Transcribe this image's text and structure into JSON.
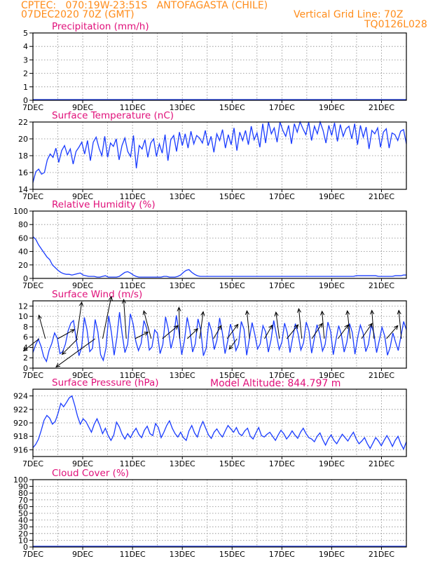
{
  "header": {
    "line1": "CPTEC:   070:19W-23:51S   ANTOFAGASTA (CHILE)",
    "line2": "07DEC2020 70Z (GMT)",
    "grid_note": "Vertical Grid Line: 70Z",
    "code": "TQ0126L028",
    "model_altitude": "Model Altitude: 844.797 m"
  },
  "colors": {
    "header": "#ff8c1a",
    "title": "#e0107a",
    "line": "#1a3cff",
    "arrow": "#000000",
    "grid": "#888888"
  },
  "chart_data": [
    {
      "type": "line",
      "title": "Precipitation (mm/h)",
      "ylim": [
        0,
        5
      ],
      "yticks": [
        "0",
        "1",
        "2",
        "3",
        "4",
        "5"
      ],
      "xlim_days": [
        7,
        22
      ],
      "xticks": [
        "7DEC",
        "9DEC",
        "11DEC",
        "13DEC",
        "15DEC",
        "17DEC",
        "19DEC",
        "21DEC"
      ],
      "grid": true,
      "series": [
        {
          "values": []
        }
      ]
    },
    {
      "type": "line",
      "title": "Surface Temperature (nC)",
      "ylim": [
        14,
        22
      ],
      "yticks": [
        "14",
        "16",
        "18",
        "20",
        "22"
      ],
      "xticks": [
        "7DEC",
        "9DEC",
        "11DEC",
        "13DEC",
        "15DEC",
        "17DEC",
        "19DEC",
        "21DEC"
      ],
      "grid": true,
      "series": [
        {
          "values": [
            14.8,
            16.1,
            16.4,
            15.8,
            16.0,
            17.5,
            18.2,
            17.8,
            18.9,
            17.2,
            18.6,
            19.2,
            18.1,
            18.8,
            17.0,
            18.5,
            19.0,
            19.6,
            18.2,
            19.8,
            17.4,
            19.6,
            20.2,
            18.9,
            18.0,
            20.3,
            17.8,
            19.5,
            19.1,
            20.0,
            17.5,
            19.2,
            20.1,
            18.5,
            17.9,
            20.4,
            16.5,
            19.2,
            18.8,
            19.9,
            17.8,
            19.5,
            20.0,
            17.9,
            19.4,
            18.3,
            20.5,
            17.4,
            19.9,
            20.4,
            18.5,
            20.8,
            19.2,
            20.6,
            18.9,
            20.9,
            19.4,
            20.4,
            20.1,
            19.5,
            21.0,
            19.2,
            20.3,
            18.4,
            20.6,
            19.8,
            21.1,
            18.9,
            20.5,
            19.3,
            21.3,
            18.6,
            20.8,
            19.8,
            21.0,
            19.3,
            21.5,
            19.9,
            20.7,
            19.0,
            21.8,
            19.5,
            22.0,
            20.6,
            21.3,
            19.6,
            22.2,
            21.0,
            20.3,
            21.6,
            19.4,
            21.8,
            20.8,
            22.0,
            21.2,
            20.5,
            22.3,
            19.8,
            21.5,
            20.6,
            22.1,
            21.0,
            19.5,
            21.6,
            20.4,
            21.9,
            19.7,
            21.7,
            20.3,
            21.2,
            21.5,
            20.0,
            21.8,
            19.3,
            21.6,
            20.2,
            21.4,
            18.8,
            21.0,
            20.6,
            21.3,
            19.0,
            20.8,
            21.2,
            18.9,
            20.7,
            20.5,
            19.8,
            20.9,
            21.1,
            19.4
          ]
        }
      ]
    },
    {
      "type": "line",
      "title": "Relative Humidity (%)",
      "ylim": [
        0,
        100
      ],
      "yticks": [
        "0",
        "20",
        "40",
        "60",
        "80",
        "100"
      ],
      "xticks": [
        "7DEC",
        "9DEC",
        "11DEC",
        "13DEC",
        "15DEC",
        "17DEC",
        "19DEC",
        "21DEC"
      ],
      "grid": true,
      "series": [
        {
          "values": [
            62,
            58,
            50,
            44,
            38,
            32,
            28,
            20,
            16,
            12,
            9,
            7,
            6,
            6,
            5,
            6,
            7,
            8,
            5,
            4,
            3,
            3,
            3,
            2,
            2,
            3,
            4,
            2,
            2,
            2,
            2,
            3,
            6,
            9,
            10,
            8,
            5,
            3,
            2,
            2,
            2,
            2,
            2,
            2,
            2,
            2,
            2,
            3,
            3,
            2,
            2,
            2,
            3,
            5,
            9,
            12,
            13,
            9,
            6,
            4,
            3,
            3,
            3,
            3,
            3,
            3,
            3,
            3,
            3,
            3,
            3,
            3,
            3,
            3,
            3,
            3,
            3,
            3,
            3,
            3,
            3,
            3,
            3,
            3,
            3,
            3,
            3,
            3,
            3,
            3,
            3,
            3,
            3,
            3,
            3,
            3,
            3,
            3,
            3,
            3,
            3,
            3,
            3,
            3,
            3,
            3,
            3,
            3,
            3,
            3,
            3,
            3,
            3,
            3,
            3,
            3,
            4,
            4,
            4,
            4,
            4,
            4,
            4,
            4,
            3,
            3,
            3,
            3,
            3,
            3,
            4,
            4,
            4,
            5,
            5
          ]
        }
      ]
    },
    {
      "type": "line",
      "title": "Surface Wind (m/s)",
      "ylim": [
        0,
        13
      ],
      "yticks": [
        "0",
        "2",
        "4",
        "6",
        "8",
        "10",
        "12"
      ],
      "xticks": [
        "7DEC",
        "9DEC",
        "11DEC",
        "13DEC",
        "15DEC",
        "17DEC",
        "19DEC",
        "21DEC"
      ],
      "grid": true,
      "series": [
        {
          "values": [
            3.0,
            4.5,
            5.6,
            4.2,
            2.2,
            1.3,
            3.5,
            4.8,
            6.8,
            5.8,
            2.8,
            3.2,
            4.6,
            7.2,
            8.7,
            9.2,
            5.5,
            2.4,
            4.0,
            9.8,
            7.4,
            3.2,
            3.8,
            9.4,
            7.0,
            2.6,
            1.5,
            3.9,
            10.1,
            6.9,
            2.5,
            5.8,
            10.8,
            6.5,
            3.0,
            4.6,
            10.5,
            8.6,
            5.2,
            3.4,
            4.8,
            9.2,
            7.8,
            3.5,
            4.1,
            7.4,
            6.7,
            2.8,
            4.6,
            9.9,
            7.6,
            3.8,
            5.9,
            10.2,
            6.8,
            2.6,
            5.4,
            9.8,
            7.3,
            3.1,
            4.7,
            9.5,
            7.4,
            2.4,
            3.8,
            8.9,
            7.2,
            3.6,
            5.4,
            9.7,
            6.8,
            2.8,
            5.3,
            8.5,
            6.6,
            3.4,
            4.6,
            9.0,
            7.5,
            2.5,
            5.7,
            8.8,
            6.5,
            3.7,
            4.7,
            8.2,
            7.0,
            3.1,
            5.5,
            9.2,
            6.4,
            3.6,
            5.0,
            8.7,
            6.8,
            3.0,
            5.9,
            8.6,
            6.6,
            3.5,
            4.9,
            8.9,
            7.2,
            2.9,
            5.8,
            8.4,
            6.5,
            3.3,
            4.6,
            8.9,
            7.1,
            2.6,
            5.5,
            8.2,
            6.4,
            3.1,
            5.0,
            8.6,
            6.9,
            2.7,
            5.9,
            8.3,
            6.8,
            3.2,
            4.6,
            8.4,
            6.7,
            3.0,
            5.4,
            7.9,
            6.2,
            2.5,
            4.0,
            6.8,
            5.0,
            3.4,
            6.2,
            9.0,
            7.4
          ]
        }
      ]
    },
    {
      "type": "line",
      "title": "Surface Pressure (hPa)",
      "ylim": [
        915,
        925
      ],
      "yticks": [
        "916",
        "918",
        "920",
        "922",
        "924"
      ],
      "xticks": [
        "7DEC",
        "9DEC",
        "11DEC",
        "13DEC",
        "15DEC",
        "17DEC",
        "19DEC",
        "21DEC"
      ],
      "grid": true,
      "series": [
        {
          "values": [
            916.3,
            916.8,
            917.6,
            918.9,
            920.4,
            921.1,
            920.7,
            919.8,
            920.2,
            921.4,
            922.9,
            922.4,
            923.0,
            923.7,
            924.0,
            922.6,
            921.0,
            919.8,
            920.6,
            920.2,
            919.4,
            918.6,
            919.8,
            920.6,
            919.6,
            918.4,
            919.2,
            918.1,
            917.4,
            918.2,
            920.1,
            919.4,
            918.3,
            917.6,
            918.4,
            917.8,
            918.6,
            919.2,
            918.3,
            917.8,
            918.9,
            919.5,
            918.4,
            918.1,
            919.9,
            919.3,
            917.8,
            918.6,
            919.6,
            920.3,
            919.2,
            918.4,
            917.9,
            918.6,
            917.8,
            917.4,
            918.8,
            919.6,
            918.5,
            917.9,
            919.3,
            920.2,
            919.2,
            918.2,
            917.7,
            918.6,
            919.1,
            918.4,
            917.9,
            918.8,
            919.6,
            919.1,
            918.6,
            919.3,
            918.4,
            918.1,
            918.8,
            919.2,
            918.0,
            917.6,
            918.5,
            919.3,
            918.1,
            917.9,
            918.3,
            918.6,
            918.0,
            917.4,
            918.2,
            918.9,
            918.4,
            917.6,
            918.1,
            918.8,
            918.2,
            917.7,
            918.6,
            919.2,
            918.4,
            917.8,
            917.6,
            917.2,
            918.0,
            918.5,
            917.5,
            916.7,
            917.6,
            918.2,
            917.4,
            916.9,
            917.6,
            918.3,
            917.8,
            917.3,
            918.0,
            918.6,
            917.6,
            916.9,
            917.3,
            917.8,
            916.9,
            916.2,
            917.0,
            917.8,
            917.3,
            916.6,
            917.4,
            918.1,
            917.4,
            916.5,
            917.4,
            918.0,
            916.9,
            916.1,
            917.2
          ]
        }
      ]
    },
    {
      "type": "line",
      "title": "Cloud Cover (%)",
      "ylim": [
        0,
        100
      ],
      "yticks": [
        "0",
        "10",
        "20",
        "30",
        "40",
        "50",
        "60",
        "70",
        "80",
        "90",
        "100"
      ],
      "xticks": [
        "7DEC",
        "9DEC",
        "11DEC",
        "13DEC",
        "15DEC",
        "17DEC",
        "19DEC",
        "21DEC"
      ],
      "grid": true,
      "series": [
        {
          "values": []
        }
      ]
    }
  ],
  "wind_arrows": [
    {
      "day": 7.25,
      "u": -3.6,
      "v": -2.8
    },
    {
      "day": 7.5,
      "u": -1.5,
      "v": 5.4
    },
    {
      "day": 8.0,
      "u": 3.8,
      "v": 2.1
    },
    {
      "day": 8.75,
      "u": 1.2,
      "v": 8.4
    },
    {
      "day": 8.8,
      "u": -3.6,
      "v": -3.6
    },
    {
      "day": 9.5,
      "u": -9.0,
      "v": -6.5
    },
    {
      "day": 9.8,
      "u": 2.0,
      "v": 9.7
    },
    {
      "day": 10.75,
      "u": -0.6,
      "v": 9.0
    },
    {
      "day": 11.1,
      "u": 3.0,
      "v": 1.5
    },
    {
      "day": 11.75,
      "u": -1.7,
      "v": 6.4
    },
    {
      "day": 12.2,
      "u": 3.6,
      "v": 3.0
    },
    {
      "day": 12.9,
      "u": -0.2,
      "v": 7.2
    },
    {
      "day": 13.2,
      "u": 2.4,
      "v": 2.3
    },
    {
      "day": 13.7,
      "u": 0.8,
      "v": 6.2
    },
    {
      "day": 14.25,
      "u": 1.8,
      "v": 3.0
    },
    {
      "day": 14.8,
      "u": 2.5,
      "v": 3.3
    },
    {
      "day": 15.2,
      "u": -1.8,
      "v": -2.4
    },
    {
      "day": 15.7,
      "u": -0.6,
      "v": 6.4
    },
    {
      "day": 16.3,
      "u": 1.8,
      "v": 3.1
    },
    {
      "day": 16.9,
      "u": -0.8,
      "v": 6.1
    },
    {
      "day": 17.2,
      "u": 2.6,
      "v": 3.2
    },
    {
      "day": 17.8,
      "u": -0.7,
      "v": 6.9
    },
    {
      "day": 18.2,
      "u": 2.4,
      "v": 3.5
    },
    {
      "day": 18.7,
      "u": -0.5,
      "v": 6.3
    },
    {
      "day": 19.25,
      "u": 2.4,
      "v": 3.2
    },
    {
      "day": 19.75,
      "u": -0.7,
      "v": 6.4
    },
    {
      "day": 20.2,
      "u": 2.4,
      "v": 3.5
    },
    {
      "day": 20.7,
      "u": -0.5,
      "v": 6.5
    },
    {
      "day": 21.2,
      "u": 2.6,
      "v": 3.0
    },
    {
      "day": 21.8,
      "u": -0.6,
      "v": 6.5
    }
  ]
}
